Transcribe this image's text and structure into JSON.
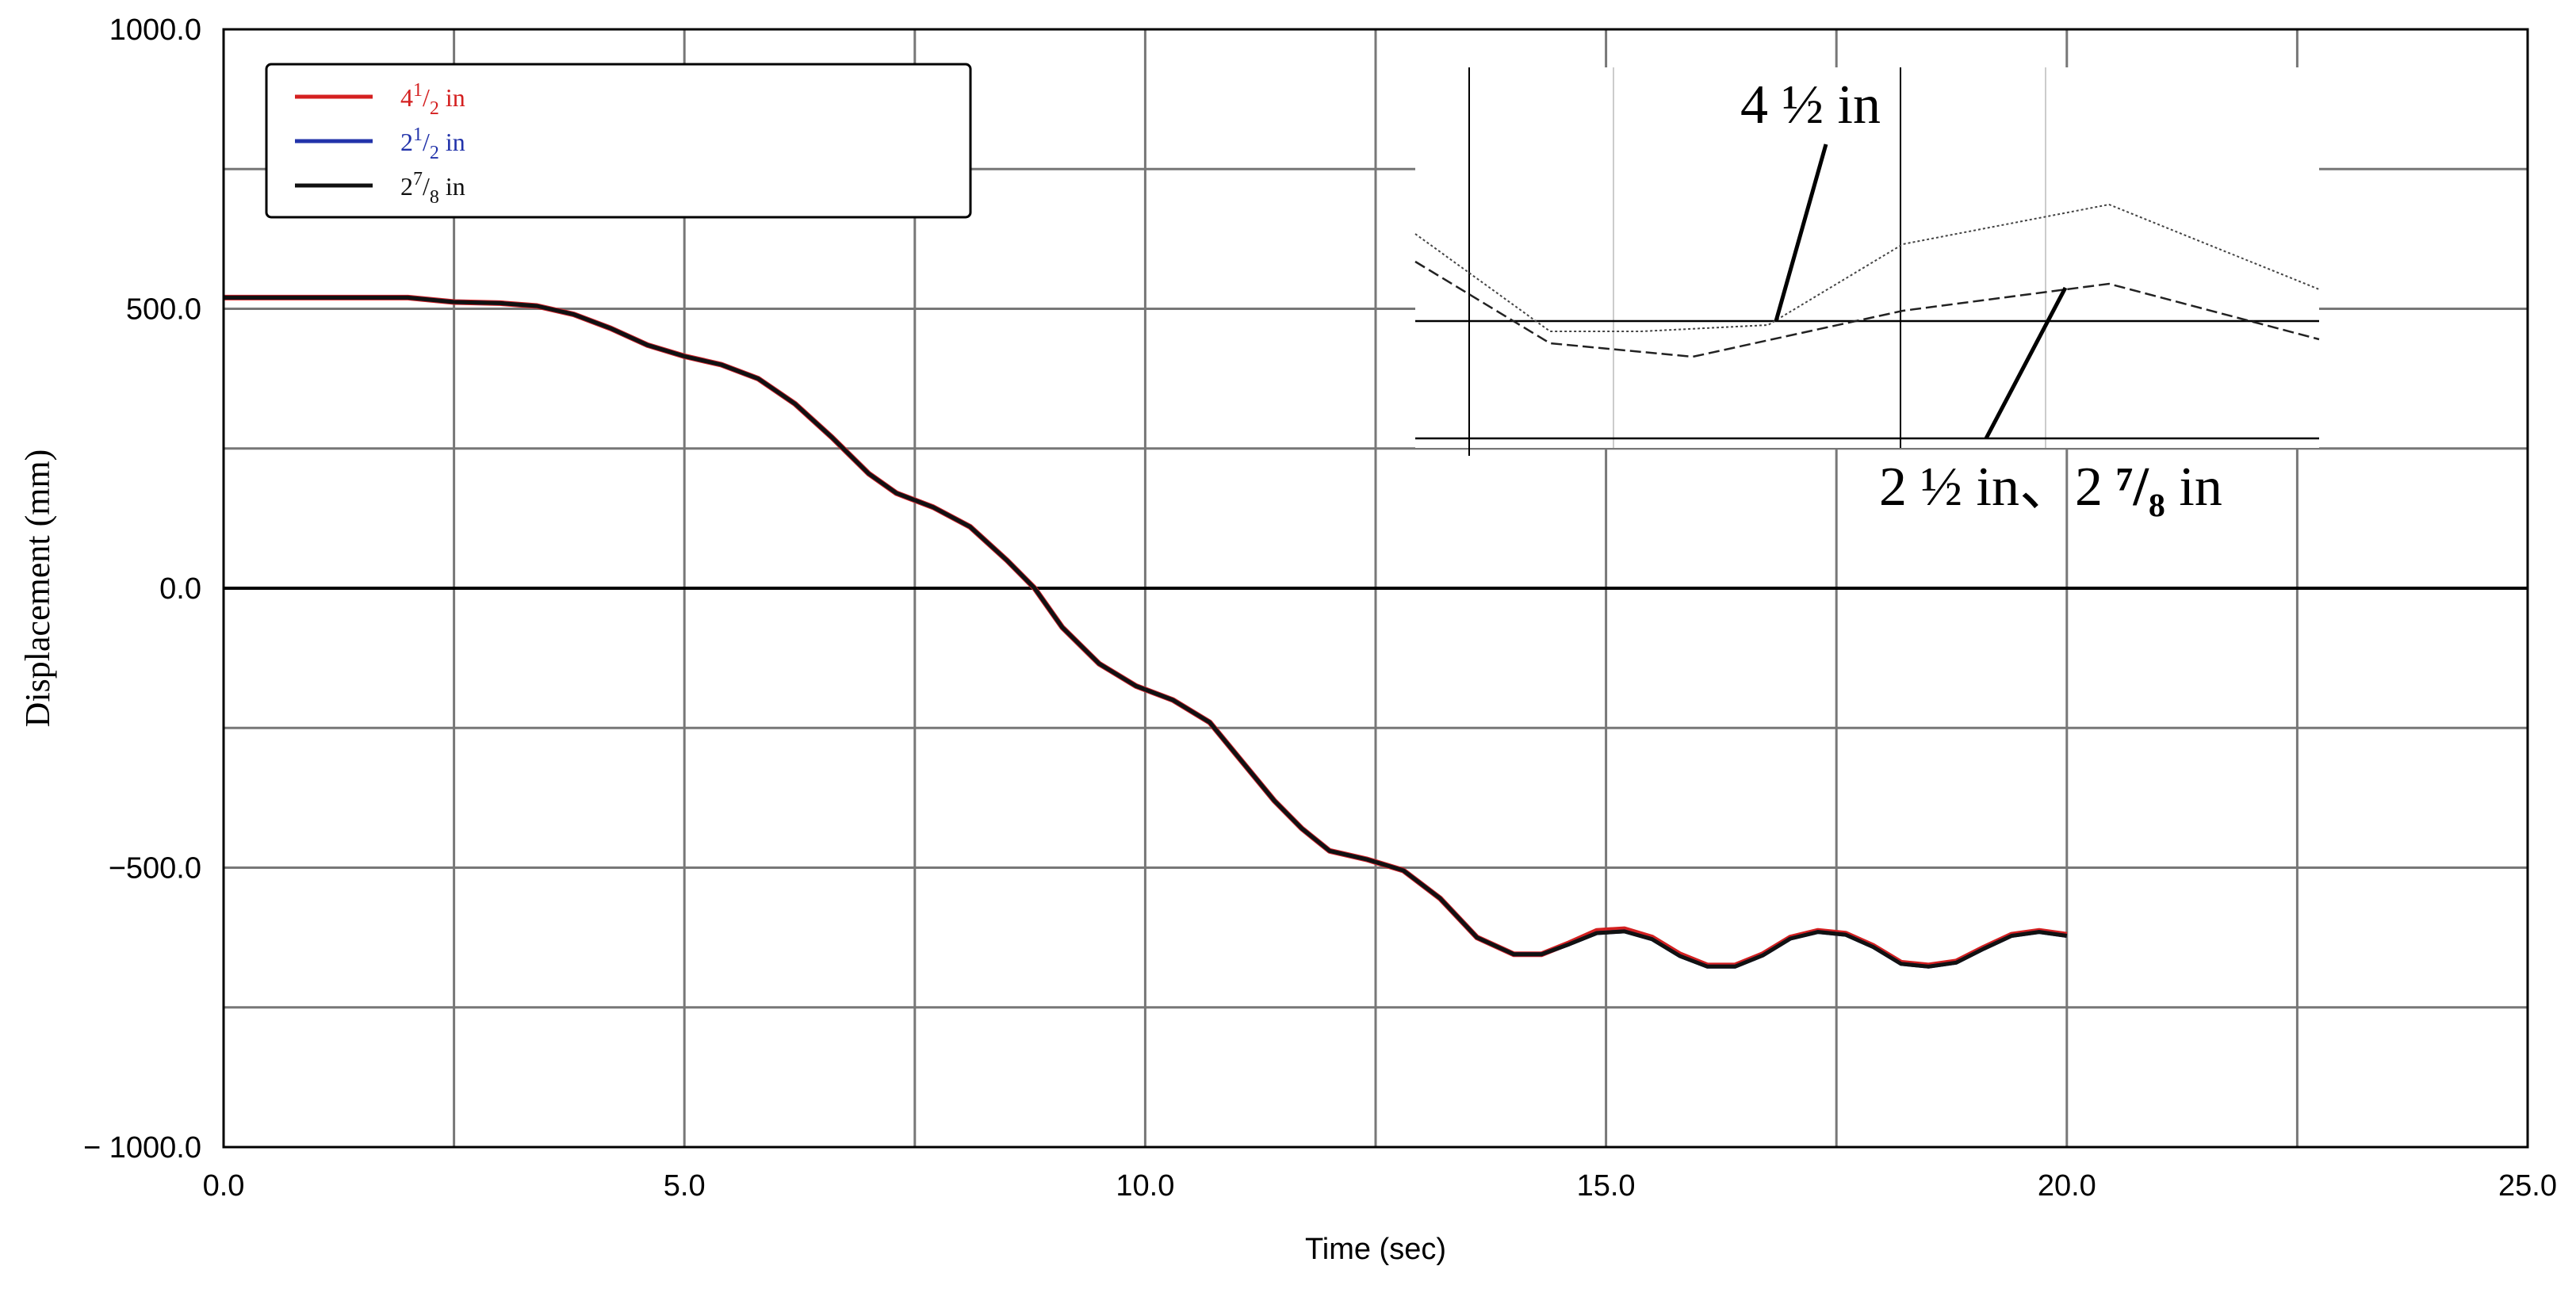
{
  "chart_data": {
    "type": "line",
    "xlabel": "Time (sec)",
    "ylabel": "Displacement (mm)",
    "xlim": [
      0,
      25
    ],
    "ylim": [
      -1000,
      1000
    ],
    "x_ticks": [
      0,
      5,
      10,
      15,
      20,
      25
    ],
    "x_tick_labels": [
      "0.0",
      "5.0",
      "10.0",
      "15.0",
      "20.0",
      "25.0"
    ],
    "y_ticks": [
      1000,
      500,
      0,
      -500,
      -1000
    ],
    "y_tick_labels": [
      "1000.0",
      "500.0",
      "0.0",
      "−500.0",
      "− 1000.0"
    ],
    "grid": true,
    "legend_position": "top-left",
    "x": [
      0,
      1,
      2,
      2.5,
      3,
      3.4,
      3.8,
      4.2,
      4.6,
      5.0,
      5.4,
      5.8,
      6.2,
      6.6,
      7.0,
      7.3,
      7.7,
      8.1,
      8.5,
      8.8,
      9.1,
      9.5,
      9.9,
      10.3,
      10.7,
      11.0,
      11.4,
      11.7,
      12.0,
      12.4,
      12.8,
      13.2,
      13.6,
      14.0,
      14.3,
      14.6,
      14.9,
      15.2,
      15.5,
      15.8,
      16.1,
      16.4,
      16.7,
      17.0,
      17.3,
      17.6,
      17.9,
      18.2,
      18.5,
      18.8,
      19.1,
      19.4,
      19.7,
      20.0
    ],
    "series": [
      {
        "name": "4 1/2 in",
        "label": {
          "main": "4",
          "sup": "1",
          "sub": "2",
          "unit": "in"
        },
        "color": "#d42020",
        "values": [
          520,
          520,
          520,
          512,
          510,
          505,
          490,
          465,
          435,
          415,
          400,
          375,
          330,
          270,
          205,
          170,
          145,
          110,
          50,
          0,
          -70,
          -135,
          -175,
          -200,
          -240,
          -300,
          -380,
          -430,
          -470,
          -485,
          -505,
          -555,
          -625,
          -655,
          -655,
          -635,
          -613,
          -610,
          -625,
          -655,
          -675,
          -675,
          -655,
          -625,
          -613,
          -618,
          -640,
          -670,
          -675,
          -668,
          -643,
          -620,
          -613,
          -620
        ]
      },
      {
        "name": "2 1/2 in",
        "label": {
          "main": "2",
          "sup": "1",
          "sub": "2",
          "unit": "in"
        },
        "color": "#2233aa",
        "values": [
          520,
          520,
          520,
          512,
          510,
          505,
          490,
          465,
          435,
          415,
          400,
          375,
          330,
          270,
          205,
          170,
          145,
          110,
          50,
          0,
          -70,
          -135,
          -175,
          -200,
          -240,
          -300,
          -380,
          -430,
          -470,
          -485,
          -505,
          -555,
          -625,
          -655,
          -655,
          -637,
          -617,
          -614,
          -628,
          -658,
          -677,
          -677,
          -657,
          -627,
          -615,
          -620,
          -642,
          -672,
          -677,
          -670,
          -645,
          -622,
          -615,
          -622
        ]
      },
      {
        "name": "2 7/8 in",
        "label": {
          "main": "2",
          "sup": "7",
          "sub": "8",
          "unit": "in"
        },
        "color": "#111111",
        "values": [
          520,
          520,
          520,
          512,
          510,
          505,
          490,
          465,
          435,
          415,
          400,
          375,
          330,
          270,
          205,
          170,
          145,
          110,
          50,
          0,
          -70,
          -135,
          -175,
          -200,
          -240,
          -300,
          -380,
          -430,
          -470,
          -485,
          -505,
          -555,
          -625,
          -655,
          -655,
          -637,
          -617,
          -614,
          -628,
          -658,
          -677,
          -677,
          -657,
          -627,
          -615,
          -620,
          -642,
          -672,
          -677,
          -670,
          -645,
          -622,
          -615,
          -622
        ]
      }
    ],
    "inset": {
      "label_top": "4 ½ in",
      "label_bottom_a": "2 ½ in、",
      "label_bottom_b_main": "2 ",
      "label_bottom_b_frac": "⁷/₈",
      "label_bottom_b_unit": " in"
    }
  }
}
